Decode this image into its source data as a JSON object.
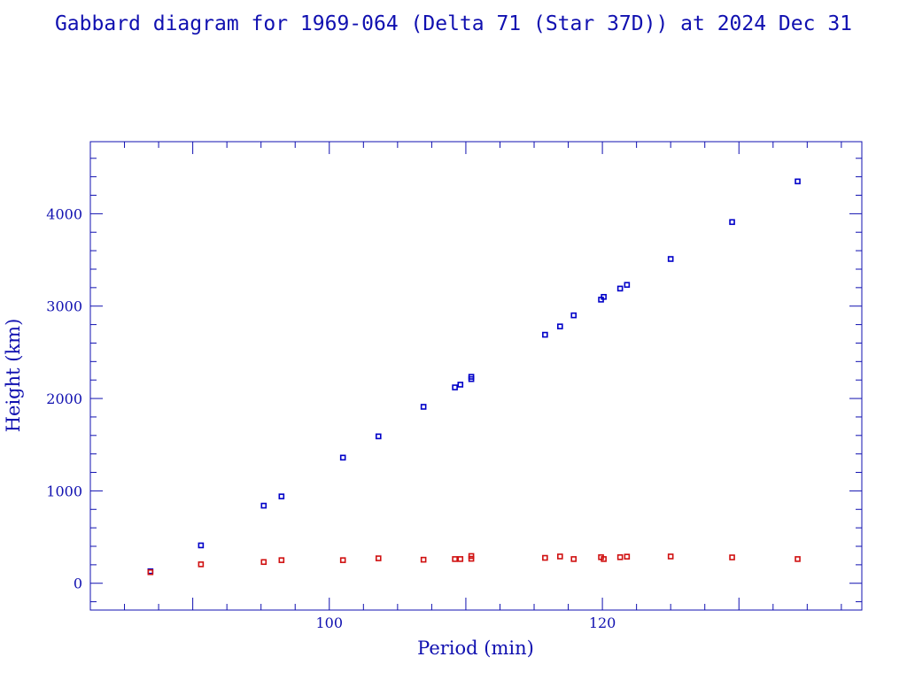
{
  "chart_data": {
    "type": "scatter",
    "title": "Gabbard diagram for 1969-064 (Delta 71 (Star 37D)) at 2024 Dec 31",
    "xlabel": "Period (min)",
    "ylabel": "Height (km)",
    "xlim": [
      82.5,
      139
    ],
    "ylim": [
      -290,
      4780
    ],
    "xticks": [
      100,
      120
    ],
    "yticks": [
      0,
      1000,
      2000,
      3000,
      4000
    ],
    "x_minor_step": 2.5,
    "y_minor_step": 200,
    "grid": false,
    "legend": "none",
    "series": [
      {
        "role": "apogee",
        "color": "#0000c8",
        "points": [
          [
            86.9,
            130
          ],
          [
            90.6,
            410
          ],
          [
            95.2,
            840
          ],
          [
            96.5,
            940
          ],
          [
            101.0,
            1360
          ],
          [
            103.6,
            1590
          ],
          [
            106.9,
            1910
          ],
          [
            109.2,
            2120
          ],
          [
            109.6,
            2150
          ],
          [
            110.4,
            2210
          ],
          [
            110.4,
            2235
          ],
          [
            115.8,
            2690
          ],
          [
            116.9,
            2780
          ],
          [
            117.9,
            2900
          ],
          [
            119.9,
            3070
          ],
          [
            120.1,
            3100
          ],
          [
            121.3,
            3190
          ],
          [
            121.8,
            3230
          ],
          [
            125.0,
            3510
          ],
          [
            129.5,
            3910
          ],
          [
            134.3,
            4350
          ]
        ]
      },
      {
        "role": "perigee",
        "color": "#d01010",
        "points": [
          [
            86.9,
            120
          ],
          [
            90.6,
            205
          ],
          [
            95.2,
            230
          ],
          [
            96.5,
            250
          ],
          [
            101.0,
            250
          ],
          [
            103.6,
            270
          ],
          [
            106.9,
            255
          ],
          [
            109.2,
            262
          ],
          [
            109.6,
            262
          ],
          [
            110.4,
            295
          ],
          [
            110.4,
            265
          ],
          [
            115.8,
            275
          ],
          [
            116.9,
            290
          ],
          [
            117.9,
            262
          ],
          [
            119.9,
            282
          ],
          [
            120.1,
            262
          ],
          [
            121.3,
            282
          ],
          [
            121.8,
            288
          ],
          [
            125.0,
            290
          ],
          [
            129.5,
            280
          ],
          [
            134.3,
            262
          ]
        ]
      }
    ]
  }
}
